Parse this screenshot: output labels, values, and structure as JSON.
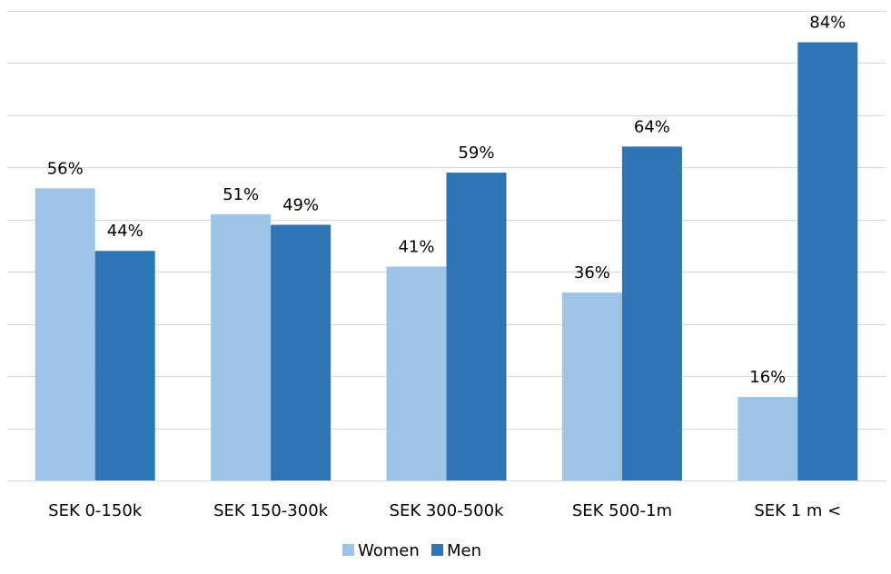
{
  "chart_data": {
    "type": "bar",
    "categories": [
      "SEK 0-150k",
      "SEK 150-300k",
      "SEK 300-500k",
      "SEK 500-1m",
      "SEK 1 m <"
    ],
    "series": [
      {
        "name": "Women",
        "values": [
          56,
          51,
          41,
          36,
          16
        ],
        "labels": [
          "56%",
          "51%",
          "41%",
          "36%",
          "16%"
        ],
        "color": "#9dc3e6"
      },
      {
        "name": "Men",
        "values": [
          44,
          49,
          59,
          64,
          84
        ],
        "labels": [
          "44%",
          "49%",
          "59%",
          "64%",
          "84%"
        ],
        "color": "#2e75b6"
      }
    ],
    "ylim": [
      0,
      90
    ],
    "grid_step": 10,
    "grid": true,
    "y_axis_labels_visible": false,
    "legend_position": "bottom-center"
  }
}
